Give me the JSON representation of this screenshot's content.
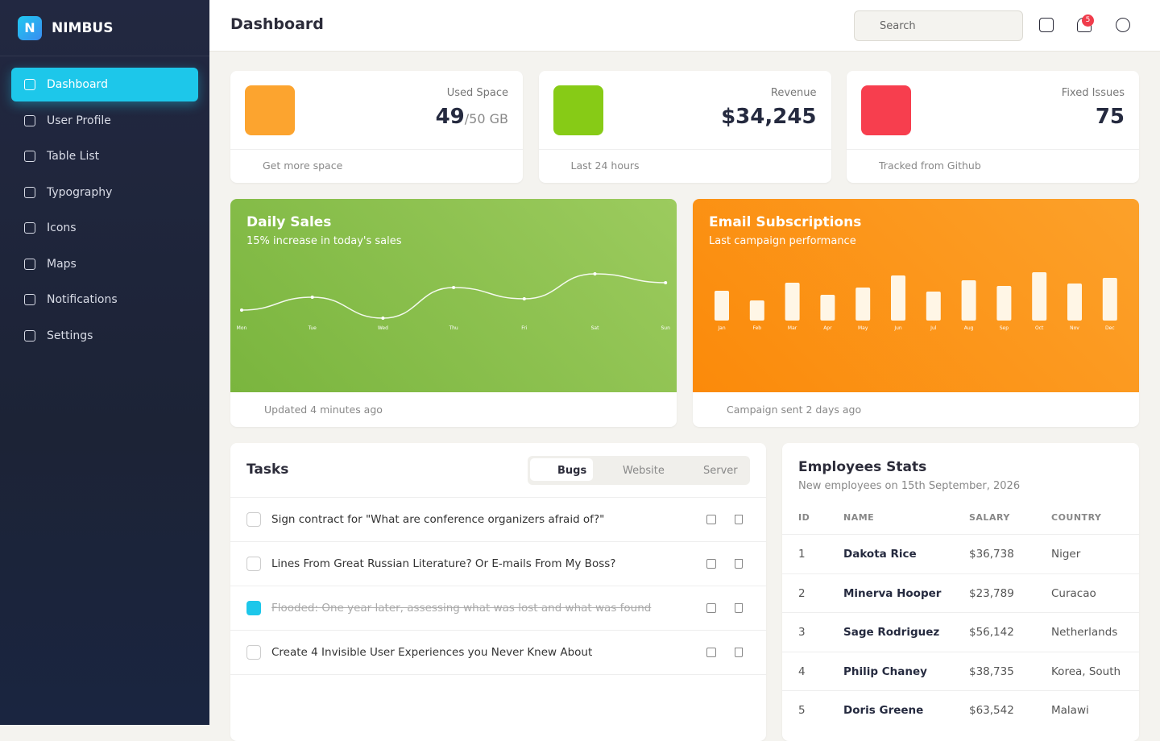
{
  "brand": "NIMBUS",
  "brand_initial": "N",
  "sidebar": {
    "items": [
      "Dashboard",
      "User Profile",
      "Table List",
      "Typography",
      "Icons",
      "Maps",
      "Notifications",
      "Settings"
    ]
  },
  "header": {
    "title": "Dashboard",
    "search_placeholder": "Search",
    "notification_count": 5
  },
  "stats": [
    {
      "label": "Used Space",
      "value": "49",
      "unit": "/50 GB",
      "footer": "Get more space"
    },
    {
      "label": "Revenue",
      "value": "$34,245",
      "footer": "Last 24 hours"
    },
    {
      "label": "Fixed Issues",
      "value": "75",
      "footer": "Tracked from Github"
    }
  ],
  "chart_data": [
    {
      "type": "line",
      "title": "Daily Sales",
      "subtitle": "15% increase in today's sales",
      "footer": "Updated 4 minutes ago",
      "categories": [
        "Mon",
        "Tue",
        "Wed",
        "Thu",
        "Fri",
        "Sat",
        "Sun"
      ],
      "values": [
        15,
        31,
        5,
        43,
        29,
        60,
        49
      ],
      "color": "#ffffff"
    },
    {
      "type": "bar",
      "title": "Email Subscriptions",
      "subtitle": "Last campaign performance",
      "footer": "Campaign sent 2 days ago",
      "categories": [
        "Jan",
        "Feb",
        "Mar",
        "Apr",
        "May",
        "Jun",
        "Jul",
        "Aug",
        "Sep",
        "Oct",
        "Nov",
        "Dec"
      ],
      "values": [
        37,
        25,
        47,
        32,
        41,
        56,
        36,
        50,
        43,
        60,
        46,
        53
      ],
      "color": "#fff6e6"
    }
  ],
  "tasks": {
    "title": "Tasks",
    "tabs": [
      "Bugs",
      "Website",
      "Server"
    ],
    "items": [
      {
        "text": "Sign contract for \"What are conference organizers afraid of?\"",
        "done": false
      },
      {
        "text": "Lines From Great Russian Literature? Or E-mails From My Boss?",
        "done": false
      },
      {
        "text": "Flooded: One year later, assessing what was lost and what was found",
        "done": true
      },
      {
        "text": "Create 4 Invisible User Experiences you Never Knew About",
        "done": false
      }
    ]
  },
  "employees": {
    "title": "Employees Stats",
    "subtitle": "New employees on 15th September, 2026",
    "columns": [
      "ID",
      "NAME",
      "SALARY",
      "COUNTRY"
    ],
    "rows": [
      [
        "1",
        "Dakota Rice",
        "$36,738",
        "Niger"
      ],
      [
        "2",
        "Minerva Hooper",
        "$23,789",
        "Curacao"
      ],
      [
        "3",
        "Sage Rodriguez",
        "$56,142",
        "Netherlands"
      ],
      [
        "4",
        "Philip Chaney",
        "$38,735",
        "Korea, South"
      ],
      [
        "5",
        "Doris Greene",
        "$63,542",
        "Malawi"
      ]
    ]
  }
}
